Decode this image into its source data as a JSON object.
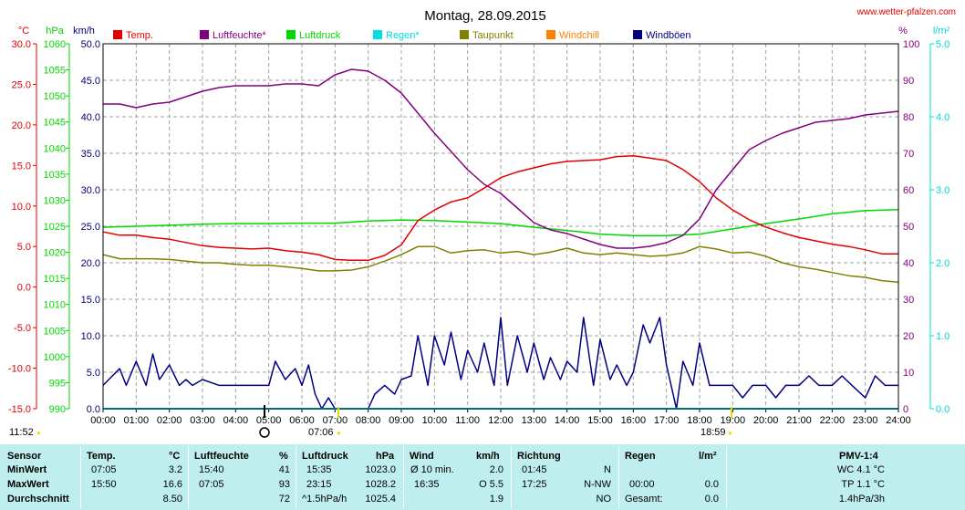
{
  "title": "Montag, 28.09.2015",
  "site": "www.wetter-pfalzen.com",
  "units": {
    "temp": "°C",
    "press": "hPa",
    "wind": "km/h",
    "hum": "%",
    "rain": "l/m²"
  },
  "legend": [
    {
      "label": "Temp.",
      "color": "#e00000"
    },
    {
      "label": "Luftfeuchte*",
      "color": "#800080"
    },
    {
      "label": "Luftdruck",
      "color": "#00d800"
    },
    {
      "label": "Regen*",
      "color": "#00e0e0"
    },
    {
      "label": "Taupunkt",
      "color": "#808000"
    },
    {
      "label": "Windchill",
      "color": "#ff8000"
    },
    {
      "label": "Windböen",
      "color": "#000080"
    }
  ],
  "axes": {
    "temp_ticks": [
      "30.0",
      "25.0",
      "20.0",
      "15.0",
      "10.0",
      "5.0",
      "0.0",
      "-5.0",
      "-10.0",
      "-15.0"
    ],
    "press_ticks": [
      "1060",
      "1055",
      "1050",
      "1045",
      "1040",
      "1035",
      "1030",
      "1025",
      "1020",
      "1015",
      "1010",
      "1005",
      "1000",
      "995",
      "990"
    ],
    "wind_ticks": [
      "50.0",
      "45.0",
      "40.0",
      "35.0",
      "30.0",
      "25.0",
      "20.0",
      "15.0",
      "10.0",
      "5.0",
      "0.0"
    ],
    "hum_ticks": [
      "100",
      "90",
      "80",
      "70",
      "60",
      "50",
      "40",
      "30",
      "20",
      "10",
      "0"
    ],
    "rain_ticks": [
      "5.0",
      "4.0",
      "3.0",
      "2.0",
      "1.0",
      "0.0"
    ],
    "x_ticks": [
      "00:00",
      "01:00",
      "02:00",
      "03:00",
      "04:00",
      "05:00",
      "06:00",
      "07:00",
      "08:00",
      "09:00",
      "10:00",
      "11:00",
      "12:00",
      "13:00",
      "14:00",
      "15:00",
      "16:00",
      "17:00",
      "18:00",
      "19:00",
      "20:00",
      "21:00",
      "22:00",
      "23:00",
      "24:00"
    ]
  },
  "markers": {
    "moonrise": "11:52",
    "sunrise": "07:06",
    "sunset": "18:59"
  },
  "chart_data": {
    "type": "line",
    "title": "Montag, 28.09.2015",
    "x_unit": "hour of day",
    "x_range": [
      0,
      24
    ],
    "grid": true,
    "legend_position": "top",
    "series": [
      {
        "name": "Temp.",
        "axis": "°C",
        "ylim": [
          -15,
          30
        ],
        "color": "#e00000",
        "x": [
          0,
          0.5,
          1,
          1.5,
          2,
          2.5,
          3,
          3.5,
          4,
          4.5,
          5,
          5.5,
          6,
          6.5,
          7,
          7.5,
          8,
          8.5,
          9,
          9.5,
          10,
          10.5,
          11,
          11.5,
          12,
          12.5,
          13,
          13.5,
          14,
          14.5,
          15,
          15.5,
          16,
          16.5,
          17,
          17.5,
          18,
          18.5,
          19,
          19.5,
          20,
          20.5,
          21,
          21.5,
          22,
          22.5,
          23,
          23.5,
          24
        ],
        "y": [
          6.8,
          6.4,
          6.4,
          6.1,
          5.9,
          5.5,
          5.1,
          4.9,
          4.8,
          4.7,
          4.8,
          4.5,
          4.3,
          4.0,
          3.4,
          3.3,
          3.3,
          3.9,
          5.2,
          8.2,
          9.5,
          10.5,
          11.0,
          12.2,
          13.5,
          14.2,
          14.7,
          15.2,
          15.5,
          15.6,
          15.7,
          16.1,
          16.2,
          15.9,
          15.6,
          14.5,
          13.0,
          11.0,
          9.5,
          8.3,
          7.4,
          6.7,
          6.1,
          5.7,
          5.3,
          5.0,
          4.6,
          4.1,
          4.1
        ]
      },
      {
        "name": "Luftfeuchte*",
        "axis": "%",
        "ylim": [
          0,
          100
        ],
        "color": "#800080",
        "x": [
          0,
          0.5,
          1,
          1.5,
          2,
          2.5,
          3,
          3.5,
          4,
          4.5,
          5,
          5.5,
          6,
          6.5,
          7,
          7.5,
          8,
          8.5,
          9,
          9.5,
          10,
          10.5,
          11,
          11.5,
          12,
          12.5,
          13,
          13.5,
          14,
          14.5,
          15,
          15.5,
          16,
          16.5,
          17,
          17.5,
          18,
          18.5,
          19,
          19.5,
          20,
          20.5,
          21,
          21.5,
          22,
          22.5,
          23,
          23.5,
          24
        ],
        "y": [
          83.5,
          83.5,
          82.5,
          83.5,
          84,
          85.5,
          87,
          88,
          88.5,
          88.5,
          88.5,
          89,
          89,
          88.5,
          91.5,
          93,
          92.5,
          90,
          86.5,
          81,
          75.5,
          70.5,
          65.5,
          61.5,
          59,
          55,
          51,
          49,
          48,
          46.5,
          45,
          44,
          44,
          44.5,
          45.5,
          47.5,
          52,
          60,
          65.5,
          71,
          73.5,
          75.5,
          77,
          78.5,
          79,
          79.5,
          80.5,
          81,
          81.5
        ]
      },
      {
        "name": "Luftdruck",
        "axis": "hPa",
        "ylim": [
          990,
          1060
        ],
        "color": "#00d800",
        "x": [
          0,
          1,
          2,
          3,
          4,
          5,
          6,
          7,
          8,
          9,
          10,
          11,
          12,
          13,
          14,
          15,
          16,
          17,
          18,
          19,
          20,
          21,
          22,
          23,
          24
        ],
        "y": [
          1024.8,
          1025.0,
          1025.2,
          1025.4,
          1025.5,
          1025.5,
          1025.6,
          1025.6,
          1026.0,
          1026.2,
          1026.1,
          1025.8,
          1025.5,
          1024.8,
          1024.2,
          1023.5,
          1023.2,
          1023.2,
          1023.5,
          1024.5,
          1025.5,
          1026.4,
          1027.4,
          1028.0,
          1028.2
        ]
      },
      {
        "name": "Regen*",
        "axis": "l/m²",
        "ylim": [
          0,
          5
        ],
        "color": "#00e0e0",
        "x": [
          0,
          24
        ],
        "y": [
          0.0,
          0.0
        ]
      },
      {
        "name": "Taupunkt",
        "axis": "°C",
        "ylim": [
          -15,
          30
        ],
        "color": "#808000",
        "x": [
          0,
          0.5,
          1,
          1.5,
          2,
          2.5,
          3,
          3.5,
          4,
          4.5,
          5,
          5.5,
          6,
          6.5,
          7,
          7.5,
          8,
          8.5,
          9,
          9.5,
          10,
          10.5,
          11,
          11.5,
          12,
          12.5,
          13,
          13.5,
          14,
          14.5,
          15,
          15.5,
          16,
          16.5,
          17,
          17.5,
          18,
          18.5,
          19,
          19.5,
          20,
          20.5,
          21,
          21.5,
          22,
          22.5,
          23,
          23.5,
          24
        ],
        "y": [
          4.0,
          3.5,
          3.5,
          3.5,
          3.4,
          3.2,
          3.0,
          3.0,
          2.8,
          2.7,
          2.7,
          2.5,
          2.3,
          2.0,
          2.0,
          2.1,
          2.5,
          3.2,
          4.0,
          5.0,
          5.0,
          4.2,
          4.5,
          4.6,
          4.2,
          4.4,
          4.0,
          4.3,
          4.8,
          4.2,
          4.0,
          4.2,
          4.0,
          3.8,
          3.9,
          4.2,
          5.0,
          4.7,
          4.2,
          4.3,
          3.8,
          3.0,
          2.5,
          2.2,
          1.8,
          1.4,
          1.2,
          0.8,
          0.6
        ]
      },
      {
        "name": "Windböen",
        "axis": "km/h",
        "ylim": [
          0,
          50
        ],
        "color": "#000080",
        "x": [
          0,
          0.5,
          0.7,
          1,
          1.3,
          1.5,
          1.7,
          2,
          2.3,
          2.5,
          2.7,
          3,
          3.5,
          4,
          4.5,
          5,
          5.2,
          5.5,
          5.8,
          6,
          6.2,
          6.4,
          6.6,
          6.8,
          7,
          7.2,
          7.5,
          8,
          8.2,
          8.5,
          8.8,
          9,
          9.3,
          9.5,
          9.8,
          10,
          10.3,
          10.5,
          10.8,
          11,
          11.3,
          11.5,
          11.8,
          12,
          12.2,
          12.5,
          12.8,
          13,
          13.3,
          13.5,
          13.8,
          14,
          14.3,
          14.5,
          14.8,
          15,
          15.3,
          15.5,
          15.8,
          16,
          16.3,
          16.5,
          16.8,
          17,
          17.3,
          17.5,
          17.8,
          18,
          18.3,
          18.6,
          19,
          19.3,
          19.6,
          20,
          20.3,
          20.6,
          21,
          21.3,
          21.6,
          22,
          22.3,
          22.6,
          23,
          23.3,
          23.6,
          24
        ],
        "y": [
          3.2,
          5.5,
          3.2,
          6.5,
          3.2,
          7.5,
          4.0,
          6.0,
          3.2,
          4.0,
          3.2,
          4.0,
          3.2,
          3.2,
          3.2,
          3.2,
          6.5,
          4.0,
          5.5,
          3.2,
          6.0,
          2.0,
          0.0,
          1.5,
          0.0,
          0.0,
          0.0,
          0.0,
          2.0,
          3.2,
          2.0,
          4.0,
          4.5,
          10.0,
          3.2,
          10.0,
          6.0,
          10.5,
          4.0,
          8.0,
          5.0,
          9.0,
          3.2,
          12.5,
          3.2,
          10.0,
          5.0,
          9.0,
          4.0,
          7.0,
          4.0,
          6.5,
          5.0,
          12.5,
          3.2,
          9.5,
          4.0,
          6.0,
          3.2,
          5.0,
          11.5,
          9.0,
          12.5,
          6.0,
          0.0,
          6.5,
          3.2,
          9.0,
          3.2,
          3.2,
          3.2,
          1.5,
          3.2,
          3.2,
          1.5,
          3.2,
          3.2,
          4.5,
          3.2,
          3.2,
          4.5,
          3.2,
          1.5,
          4.5,
          3.2,
          3.2
        ]
      }
    ]
  },
  "stats": {
    "header": {
      "sensor": "Sensor",
      "temp": "Temp.",
      "temp_u": "°C",
      "hum": "Luftfeuchte",
      "hum_u": "%",
      "press": "Luftdruck",
      "press_u": "hPa",
      "wind": "Wind",
      "wind_u": "km/h",
      "dir": "Richtung",
      "rain": "Regen",
      "rain_u": "l/m²",
      "pmv": "PMV-1:4"
    },
    "rows": [
      {
        "label": "MinWert",
        "temp_t": "07:05",
        "temp_v": "3.2",
        "hum_t": "15:40",
        "hum_v": "41",
        "press_t": "15:35",
        "press_v": "1023.0",
        "wind_t": "Ø 10 min.",
        "wind_v": "2.0",
        "dir_t": "01:45",
        "dir_v": "N",
        "rain_t": "",
        "rain_v": "",
        "pmv": "WC 4.1 °C"
      },
      {
        "label": "MaxWert",
        "temp_t": "15:50",
        "temp_v": "16.6",
        "hum_t": "07:05",
        "hum_v": "93",
        "press_t": "23:15",
        "press_v": "1028.2",
        "wind_t": "16:35",
        "wind_v": "O 5.5",
        "dir_t": "17:25",
        "dir_v": "N-NW",
        "rain_t": "00:00",
        "rain_v": "0.0",
        "pmv": "TP 1.1 °C"
      },
      {
        "label": "Durchschnitt",
        "temp_t": "",
        "temp_v": "8.50",
        "hum_t": "",
        "hum_v": "72",
        "press_t": "^1.5hPa/h",
        "press_v": "1025.4",
        "wind_t": "",
        "wind_v": "1.9",
        "dir_t": "",
        "dir_v": "NO",
        "rain_t": "Gesamt:",
        "rain_v": "0.0",
        "pmv": "1.4hPa/3h"
      }
    ]
  }
}
